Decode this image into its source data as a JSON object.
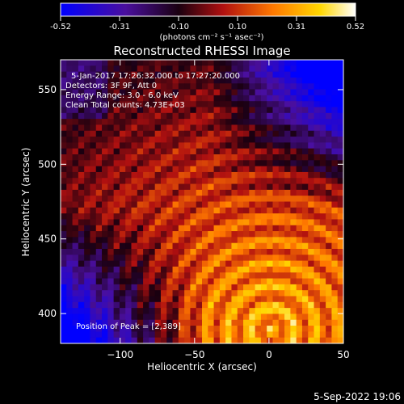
{
  "chart_data": {
    "type": "heatmap",
    "title": "Reconstructed RHESSI Image",
    "xlabel": "Heliocentric X (arcsec)",
    "ylabel": "Heliocentric Y (arcsec)",
    "xlim": [
      -140,
      50
    ],
    "ylim": [
      380,
      570
    ],
    "xticks": [
      -100,
      -50,
      0,
      50
    ],
    "yticks": [
      400,
      450,
      500,
      550
    ],
    "colorbar": {
      "range": [
        -0.52,
        0.52
      ],
      "ticks": [
        "-0.52",
        "-0.31",
        "-0.10",
        "0.10",
        "0.31",
        "0.52"
      ],
      "unit_label": "(photons cm⁻² s⁻¹ asec⁻²)",
      "colormap": [
        "#0000ff",
        "#4a0f9e",
        "#1a0010",
        "#b01010",
        "#ff7800",
        "#ffd700",
        "#ffffff"
      ]
    },
    "annotations": {
      "time": "5-Jan-2017 17:26:32.000 to 17:27:20.000",
      "detectors": "Detectors: 3F 9F, Att 0",
      "energy": "Energy Range: 3.0 - 6.0 keV",
      "clean": "Clean     Total counts: 4.73E+03",
      "peak": "Position of Peak = [2,389]"
    },
    "peak_position": [
      2,
      389
    ],
    "grid": false,
    "field_description": "fringe pattern: blue/purple negative values upper-right, bright yellow/white ring maxima lower-right"
  },
  "footer_date": "5-Sep-2022 19:06"
}
